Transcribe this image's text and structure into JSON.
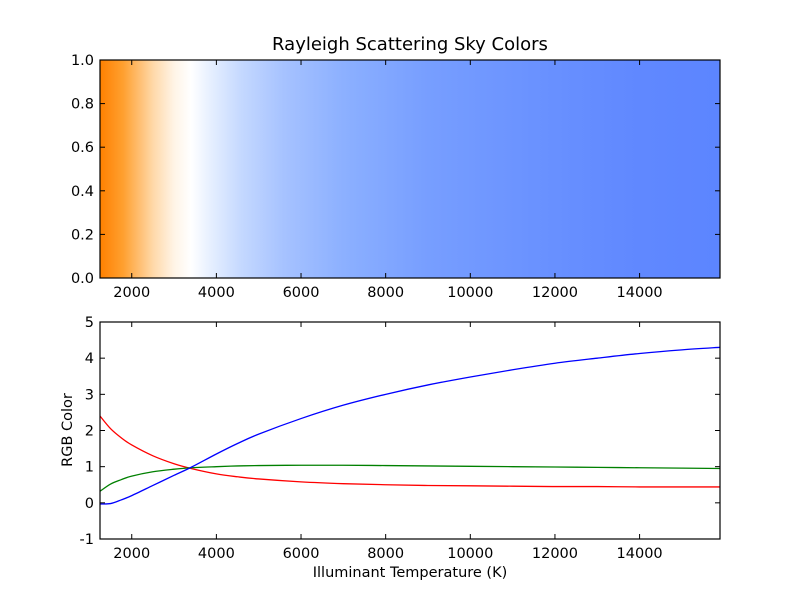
{
  "chart_data": [
    {
      "type": "heatmap",
      "title": "Rayleigh Scattering Sky Colors",
      "xlabel": "",
      "ylabel": "",
      "xlim": [
        1250,
        15900
      ],
      "ylim": [
        0.0,
        1.0
      ],
      "x_tick_labels": [
        "2000",
        "4000",
        "6000",
        "8000",
        "10000",
        "12000",
        "14000"
      ],
      "x_ticks": [
        2000,
        4000,
        6000,
        8000,
        10000,
        12000,
        14000
      ],
      "y_tick_labels": [
        "0.0",
        "0.2",
        "0.4",
        "0.6",
        "0.8",
        "1.0"
      ],
      "y_ticks": [
        0.0,
        0.2,
        0.4,
        0.6,
        0.8,
        1.0
      ],
      "color_stops": [
        {
          "t": 1250,
          "color": "#ff8000"
        },
        {
          "t": 1800,
          "color": "#ffa030"
        },
        {
          "t": 2500,
          "color": "#ffd8a8"
        },
        {
          "t": 3000,
          "color": "#fff4e6"
        },
        {
          "t": 3400,
          "color": "#ffffff"
        },
        {
          "t": 3900,
          "color": "#e4eeff"
        },
        {
          "t": 4600,
          "color": "#c4d8ff"
        },
        {
          "t": 5600,
          "color": "#a6c2ff"
        },
        {
          "t": 7000,
          "color": "#8cb0ff"
        },
        {
          "t": 9000,
          "color": "#779eff"
        },
        {
          "t": 11500,
          "color": "#6a92ff"
        },
        {
          "t": 14000,
          "color": "#6088ff"
        },
        {
          "t": 15900,
          "color": "#5c85ff"
        }
      ]
    },
    {
      "type": "line",
      "title": "",
      "xlabel": "Illuminant Temperature (K)",
      "ylabel": "RGB Color",
      "xlim": [
        1250,
        15900
      ],
      "ylim": [
        -1,
        5
      ],
      "x_tick_labels": [
        "2000",
        "4000",
        "6000",
        "8000",
        "10000",
        "12000",
        "14000"
      ],
      "x_ticks": [
        2000,
        4000,
        6000,
        8000,
        10000,
        12000,
        14000
      ],
      "y_tick_labels": [
        "-1",
        "0",
        "1",
        "2",
        "3",
        "4",
        "5"
      ],
      "y_ticks": [
        -1,
        0,
        1,
        2,
        3,
        4,
        5
      ],
      "x": [
        1250,
        1500,
        1750,
        2000,
        2500,
        3000,
        3400,
        4000,
        4500,
        5000,
        6000,
        7000,
        8000,
        9000,
        10000,
        11000,
        12000,
        13000,
        14000,
        15000,
        15900
      ],
      "series": [
        {
          "color": "#ff0000",
          "values": [
            2.4,
            2.05,
            1.8,
            1.6,
            1.3,
            1.08,
            0.95,
            0.8,
            0.72,
            0.66,
            0.58,
            0.53,
            0.5,
            0.48,
            0.47,
            0.46,
            0.45,
            0.45,
            0.44,
            0.44,
            0.44
          ]
        },
        {
          "color": "#008000",
          "values": [
            0.32,
            0.52,
            0.64,
            0.74,
            0.86,
            0.93,
            0.97,
            1.0,
            1.02,
            1.03,
            1.04,
            1.04,
            1.03,
            1.02,
            1.01,
            1.0,
            0.99,
            0.98,
            0.97,
            0.96,
            0.95
          ]
        },
        {
          "color": "#0000ff",
          "values": [
            -0.03,
            -0.02,
            0.08,
            0.2,
            0.48,
            0.76,
            0.98,
            1.35,
            1.64,
            1.9,
            2.33,
            2.7,
            3.0,
            3.26,
            3.48,
            3.68,
            3.86,
            4.0,
            4.13,
            4.23,
            4.3
          ]
        }
      ]
    }
  ]
}
